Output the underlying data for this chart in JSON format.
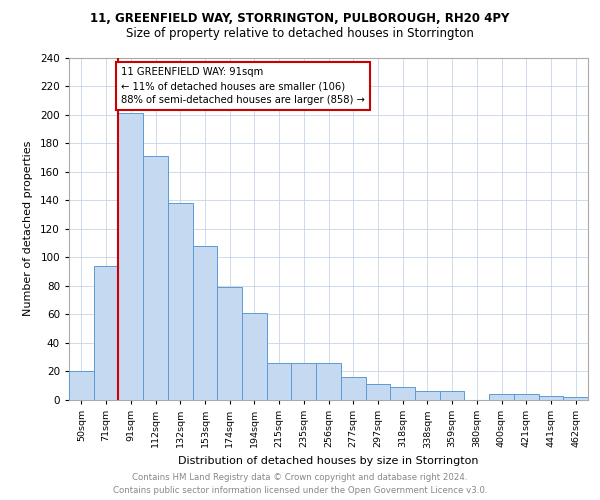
{
  "title1": "11, GREENFIELD WAY, STORRINGTON, PULBOROUGH, RH20 4PY",
  "title2": "Size of property relative to detached houses in Storrington",
  "xlabel": "Distribution of detached houses by size in Storrington",
  "ylabel": "Number of detached properties",
  "bar_labels": [
    "50sqm",
    "71sqm",
    "91sqm",
    "112sqm",
    "132sqm",
    "153sqm",
    "174sqm",
    "194sqm",
    "215sqm",
    "235sqm",
    "256sqm",
    "277sqm",
    "297sqm",
    "318sqm",
    "338sqm",
    "359sqm",
    "380sqm",
    "400sqm",
    "421sqm",
    "441sqm",
    "462sqm"
  ],
  "bar_values": [
    20,
    94,
    201,
    171,
    138,
    108,
    79,
    61,
    26,
    26,
    26,
    16,
    11,
    9,
    6,
    6,
    0,
    4,
    4,
    3,
    2
  ],
  "bar_color": "#c5d9f0",
  "bar_edge_color": "#5b9bd5",
  "highlight_index": 2,
  "highlight_line_color": "#cc0000",
  "annotation_line1": "11 GREENFIELD WAY: 91sqm",
  "annotation_line2": "← 11% of detached houses are smaller (106)",
  "annotation_line3": "88% of semi-detached houses are larger (858) →",
  "annotation_box_color": "#cc0000",
  "grid_color": "#c8d4e8",
  "footer_text": "Contains HM Land Registry data © Crown copyright and database right 2024.\nContains public sector information licensed under the Open Government Licence v3.0.",
  "ylim": [
    0,
    240
  ],
  "yticks": [
    0,
    20,
    40,
    60,
    80,
    100,
    120,
    140,
    160,
    180,
    200,
    220,
    240
  ]
}
